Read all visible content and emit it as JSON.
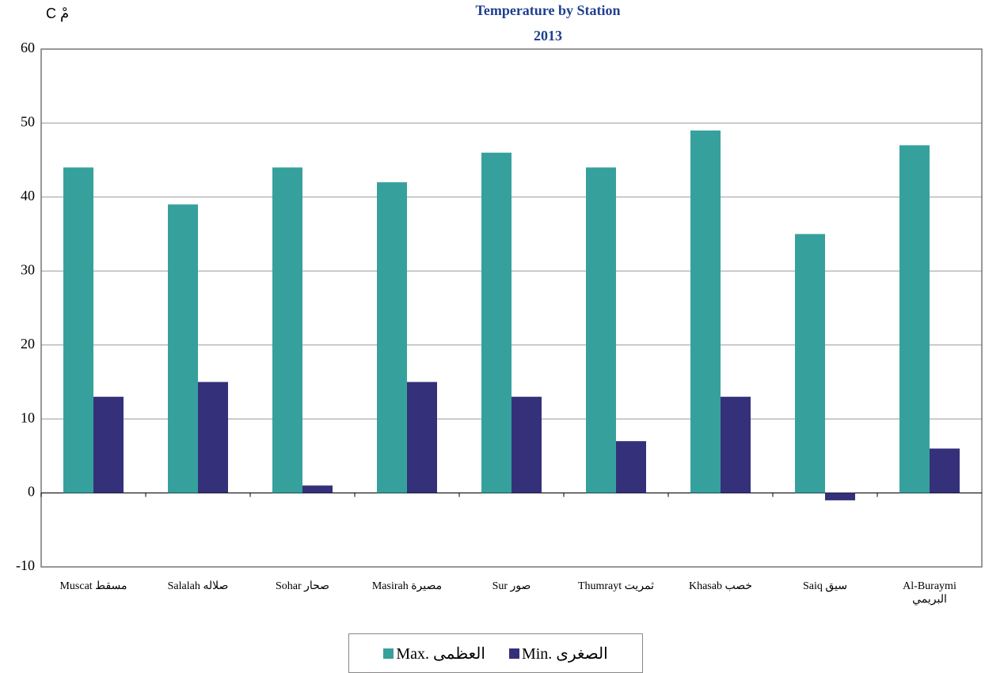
{
  "chart_data": {
    "type": "bar",
    "title": "Temperature by Station",
    "subtitle": "2013",
    "y_label": "C مْ",
    "categories": [
      "Muscat  مسقط",
      "Salalah صلاله",
      "Sohar  صحار",
      "Masirah  مصيرة",
      "Sur  صور",
      "Thumrayt  ثمريت",
      "Khasab  خصب",
      "Saiq  سيق",
      "Al-Buraymi\nالبريمي"
    ],
    "series": [
      {
        "name": "Max. العظمى",
        "color": "#36a19c",
        "values": [
          44,
          39,
          44,
          42,
          46,
          44,
          49,
          35,
          47
        ]
      },
      {
        "name": "Min. الصغرى",
        "color": "#35307a",
        "values": [
          13,
          15,
          1,
          15,
          13,
          7,
          13,
          -1,
          6
        ]
      }
    ],
    "ylim": [
      -10,
      60
    ],
    "yticks": [
      -10,
      0,
      10,
      20,
      30,
      40,
      50,
      60
    ],
    "grid": true,
    "legend": "bottom"
  }
}
